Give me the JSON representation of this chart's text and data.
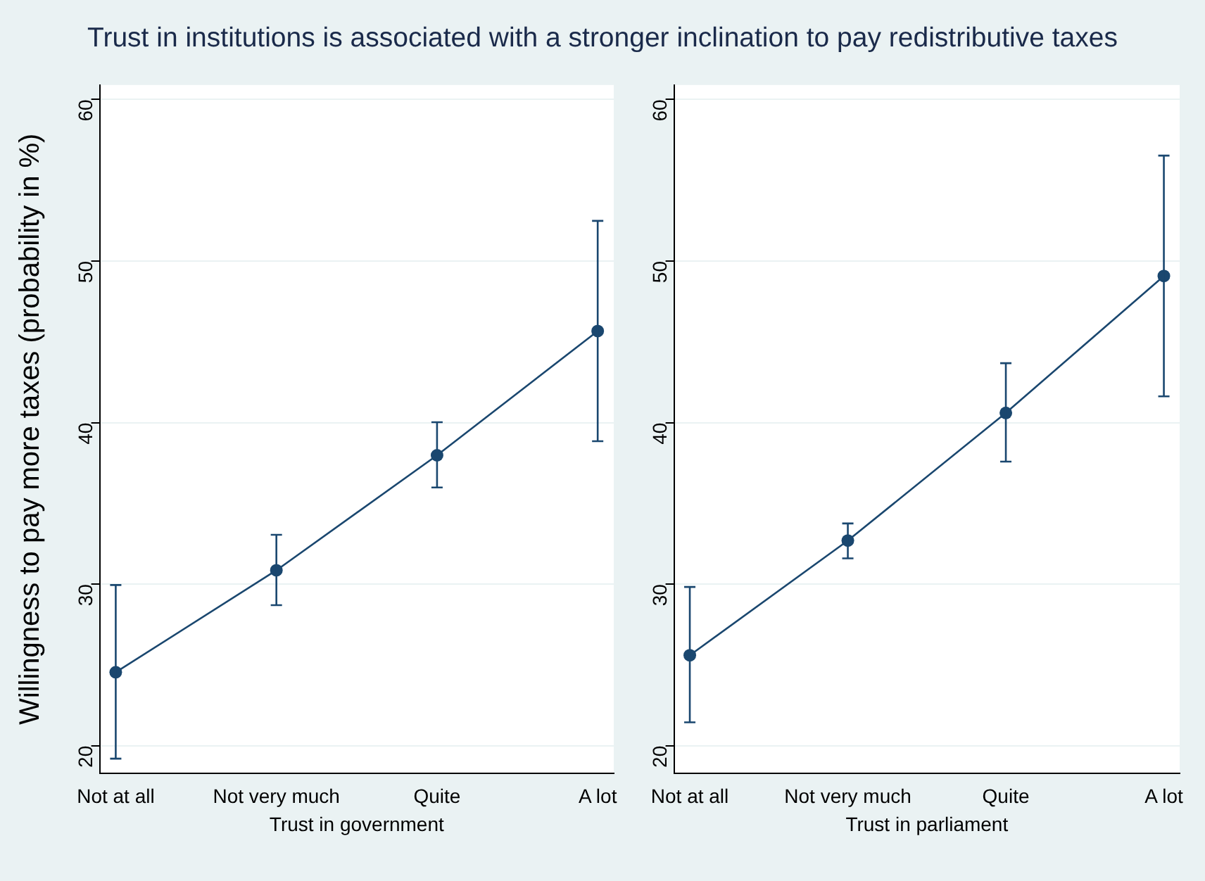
{
  "chart_data": [
    {
      "type": "line",
      "title": "Trust in institutions is associated with a stronger inclination to pay redistributive taxes",
      "xlabel": "Trust in government",
      "ylabel": "Willingness to pay more taxes (probability in %)",
      "categories": [
        "Not at all",
        "Not very much",
        "Quite",
        "A lot"
      ],
      "values": [
        24.55,
        30.86,
        37.98,
        45.67
      ],
      "errors": [
        [
          19.2,
          29.95
        ],
        [
          28.7,
          33.06
        ],
        [
          35.99,
          40.03
        ],
        [
          38.85,
          52.49
        ]
      ],
      "color": "#1a476f",
      "ylim": [
        18.3,
        60.9
      ],
      "yticks": [
        20,
        30,
        40,
        50,
        60
      ],
      "grid": "y",
      "marker": "circle",
      "line_style": "solid"
    },
    {
      "type": "line",
      "xlabel": "Trust in parliament",
      "categories": [
        "Not at all",
        "Not very much",
        "Quite",
        "A lot"
      ],
      "values": [
        25.6,
        32.7,
        40.6,
        49.08
      ],
      "errors": [
        [
          21.45,
          29.83
        ],
        [
          31.6,
          33.76
        ],
        [
          37.59,
          43.68
        ],
        [
          41.63,
          56.53
        ]
      ],
      "color": "#1a476f",
      "ylim": [
        18.3,
        60.9
      ],
      "yticks": [
        20,
        30,
        40,
        50,
        60
      ],
      "grid": "y",
      "marker": "circle",
      "line_style": "solid"
    }
  ]
}
